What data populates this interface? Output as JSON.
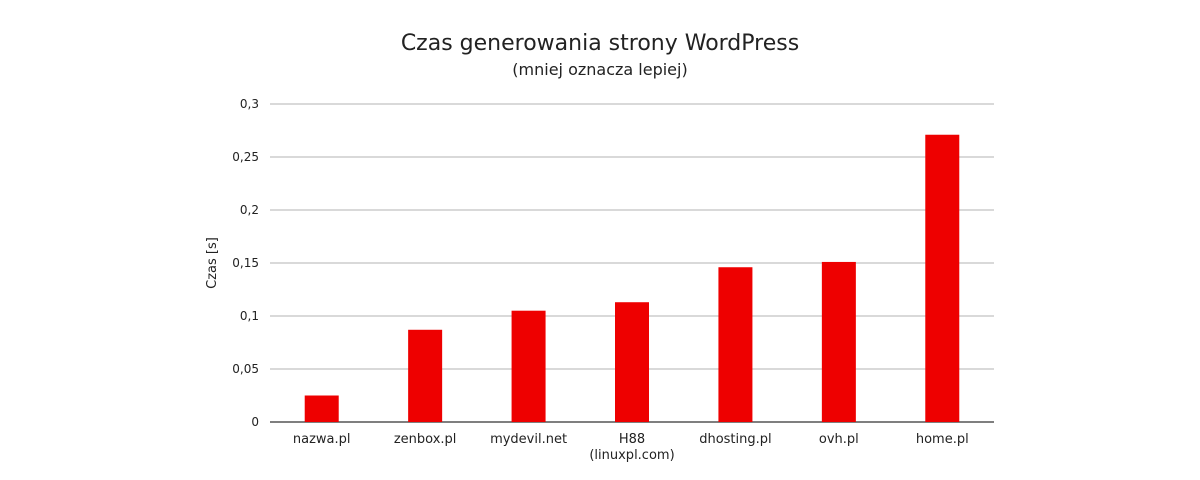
{
  "chart_data": {
    "type": "bar",
    "title": "Czas generowania strony WordPress",
    "subtitle": "(mniej oznacza lepiej)",
    "xlabel": "",
    "ylabel": "Czas [s]",
    "ylim": [
      0,
      0.3
    ],
    "yticks": [
      0,
      0.05,
      0.1,
      0.15,
      0.2,
      0.25,
      0.3
    ],
    "ytick_labels": [
      "0",
      "0,05",
      "0,1",
      "0,15",
      "0,2",
      "0,25",
      "0,3"
    ],
    "categories": [
      [
        "nazwa.pl"
      ],
      [
        "zenbox.pl"
      ],
      [
        "mydevil.net"
      ],
      [
        "H88",
        "(linuxpl.com)"
      ],
      [
        "dhosting.pl"
      ],
      [
        "ovh.pl"
      ],
      [
        "home.pl"
      ]
    ],
    "values": [
      0.025,
      0.087,
      0.105,
      0.113,
      0.146,
      0.151,
      0.271
    ],
    "bar_color": "#ee0000",
    "grid_color": "#b3b3b3",
    "grid": true,
    "legend": "none"
  }
}
